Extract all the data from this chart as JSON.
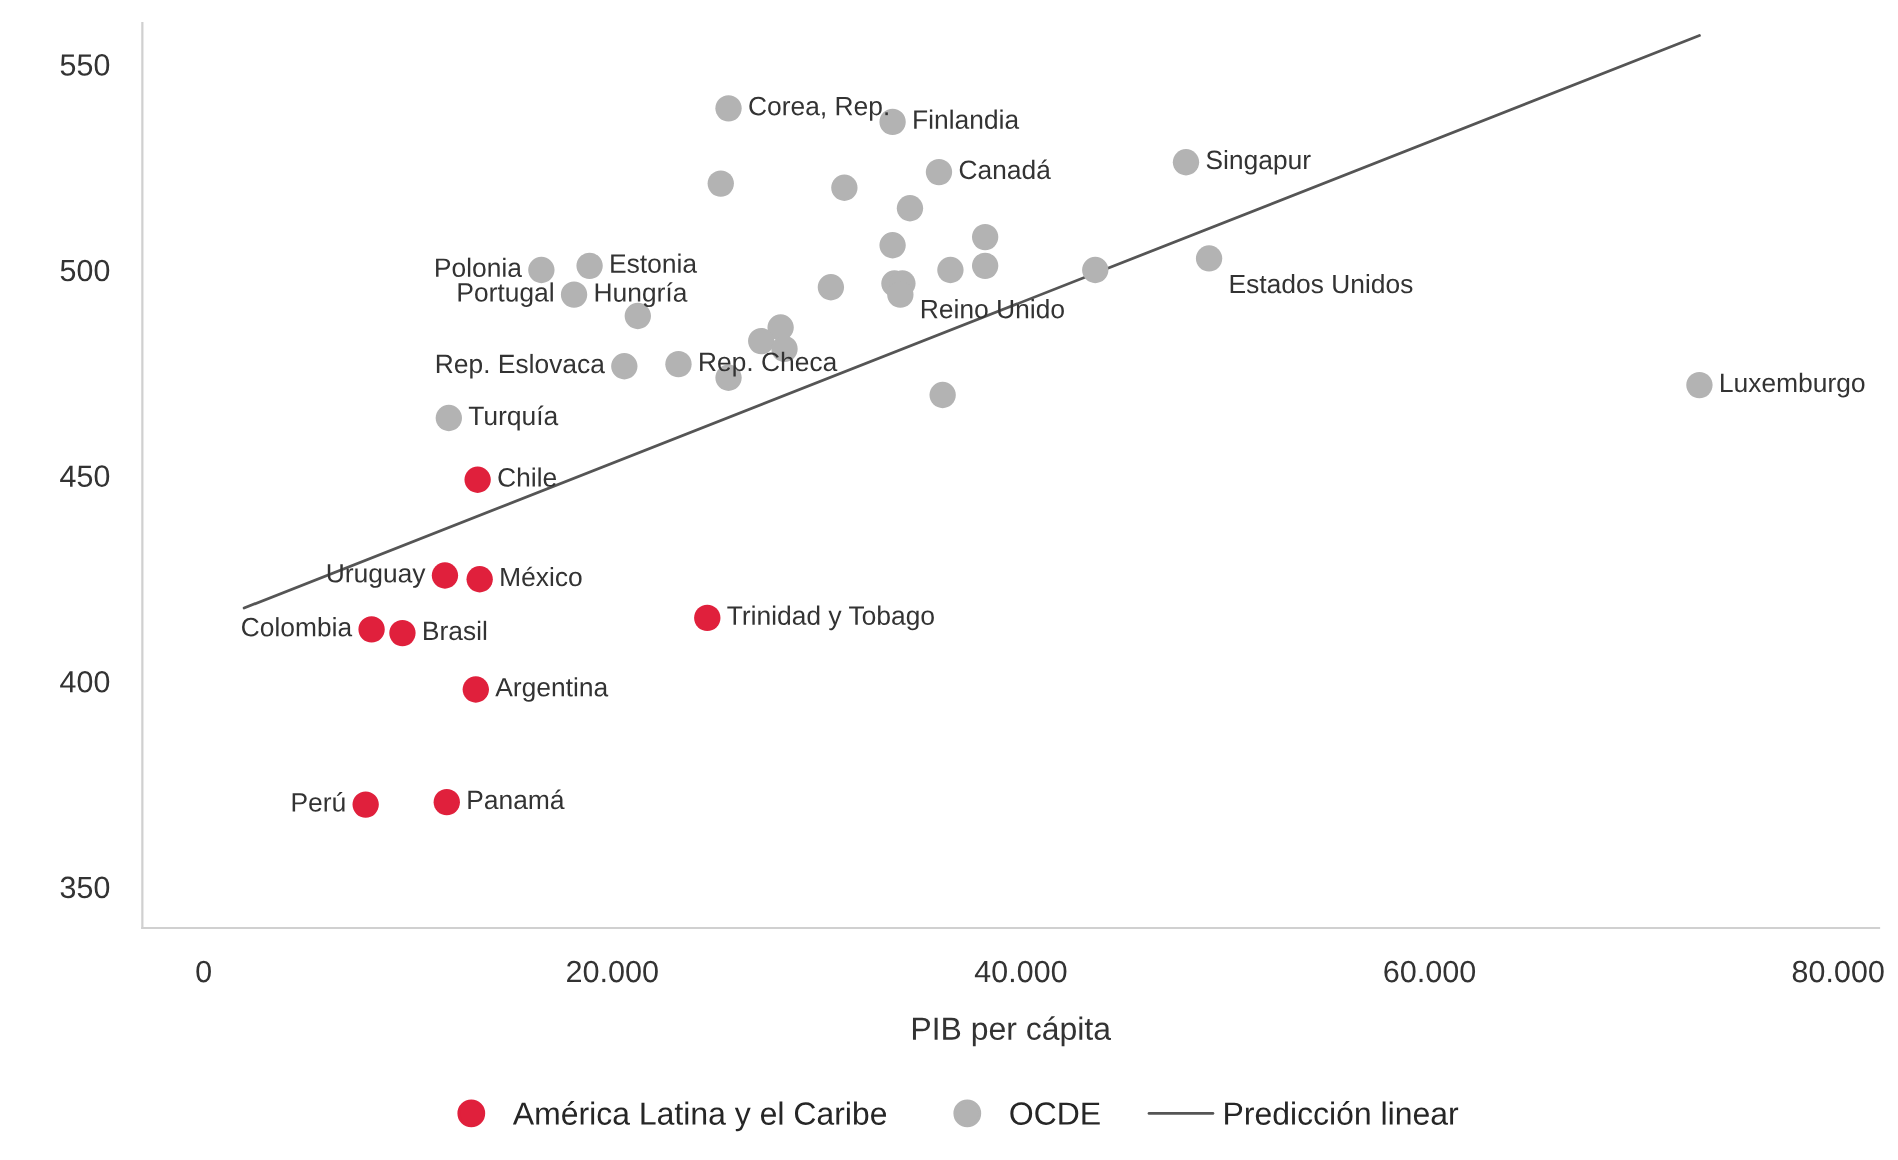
{
  "chart_data": {
    "type": "scatter",
    "xlabel": "PIB per cápita",
    "xlim": [
      -3000,
      82000
    ],
    "ylim": [
      340,
      560
    ],
    "xticks": [
      {
        "value": 0,
        "label": "0"
      },
      {
        "value": 20000,
        "label": "20.000"
      },
      {
        "value": 40000,
        "label": "40.000"
      },
      {
        "value": 60000,
        "label": "60.000"
      },
      {
        "value": 80000,
        "label": "80.000"
      }
    ],
    "yticks": [
      350,
      400,
      450,
      500,
      550
    ],
    "grid": false,
    "legend": "bottom",
    "marker": "circle",
    "series": [
      {
        "name": "América Latina y el Caribe",
        "color": "#e0203c",
        "x": [
          13410,
          11810,
          13510,
          24650,
          8220,
          9730,
          13320,
          7930,
          11900
        ],
        "values": [
          449,
          425.7,
          424.8,
          415.4,
          412.6,
          411.7,
          398,
          370,
          370.6
        ]
      },
      {
        "name": "OCDE",
        "color": "#b3b3b3",
        "x": [
          25690,
          33720,
          35990,
          48080,
          25310,
          31360,
          34570,
          38250,
          33720,
          38250,
          36550,
          43640,
          49210,
          33810,
          34200,
          34100,
          30700,
          16530,
          18890,
          18130,
          21250,
          28240,
          27290,
          28430,
          20590,
          23240,
          25690,
          36170,
          73210,
          12000
        ],
        "values": [
          539.3,
          536,
          523.8,
          526.2,
          521,
          520,
          515,
          508,
          506,
          501,
          500,
          500,
          502.8,
          496.7,
          496.7,
          494,
          495.8,
          500,
          501,
          494,
          488.8,
          486,
          482.7,
          480.8,
          476.6,
          477.1,
          473.8,
          469.6,
          472,
          464
        ]
      },
      {
        "name": "Predicción linear",
        "type": "line",
        "color": "#555555",
        "marker": "none",
        "x": [
          1980,
          73210
        ],
        "values": [
          417.8,
          557
        ]
      }
    ],
    "annotations": [
      {
        "text": "Chile",
        "x": 13410,
        "y": 449
      },
      {
        "text": "Uruguay",
        "x": 11810,
        "y": 425.7
      },
      {
        "text": "México",
        "x": 13510,
        "y": 424.8
      },
      {
        "text": "Trinidad y Tobago",
        "x": 24650,
        "y": 415.4
      },
      {
        "text": "Colombia",
        "x": 8220,
        "y": 412.6
      },
      {
        "text": "Brasil",
        "x": 9730,
        "y": 411.7
      },
      {
        "text": "Argentina",
        "x": 13320,
        "y": 398
      },
      {
        "text": "Perú",
        "x": 7930,
        "y": 370
      },
      {
        "text": "Panamá",
        "x": 11900,
        "y": 370.6
      },
      {
        "text": "Corea, Rep.",
        "x": 25690,
        "y": 539.3
      },
      {
        "text": "Finlandia",
        "x": 33720,
        "y": 536
      },
      {
        "text": "Canadá",
        "x": 35990,
        "y": 523.8
      },
      {
        "text": "Singapur",
        "x": 48080,
        "y": 526.2
      },
      {
        "text": "Polonia",
        "x": 16530,
        "y": 500
      },
      {
        "text": "Estonia",
        "x": 18890,
        "y": 501
      },
      {
        "text": "Portugal",
        "x": 18130,
        "y": 494
      },
      {
        "text": "Hungría",
        "x": 18130,
        "y": 494
      },
      {
        "text": "Reino Unido",
        "x": 34100,
        "y": 494
      },
      {
        "text": "Estados Unidos",
        "x": 49210,
        "y": 502.8
      },
      {
        "text": "Rep. Eslovaca",
        "x": 20590,
        "y": 476.6
      },
      {
        "text": "Rep. Checa",
        "x": 23240,
        "y": 477.1
      },
      {
        "text": "Luxemburgo",
        "x": 73210,
        "y": 472
      },
      {
        "text": "Turquía",
        "x": 12000,
        "y": 464
      }
    ]
  }
}
